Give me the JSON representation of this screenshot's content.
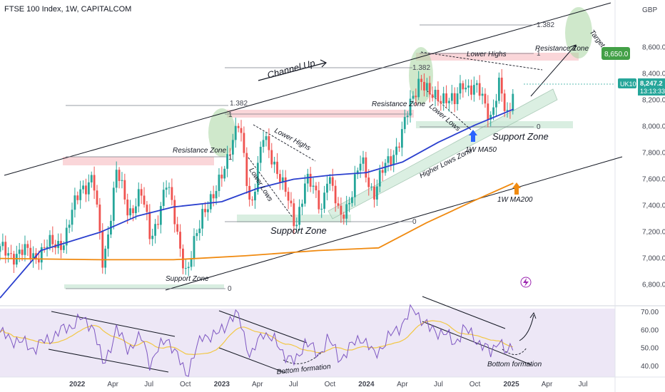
{
  "header": {
    "title": "FTSE 100 Index, 1W, CAPITALCOM"
  },
  "colors": {
    "bull": "#26a69a",
    "bear": "#ef5350",
    "ma50": "#2a3fce",
    "ma200": "#f08a10",
    "rsi": "#7e57c2",
    "rsi_ma": "#f2c744",
    "rsi_bg": "#ede7f6",
    "resistance": "#f8c8cc",
    "support": "#cfead9",
    "price_tag": "#26a69a",
    "target_tag": "#43a047"
  },
  "chart_data": {
    "type": "candlestick",
    "price_axis": {
      "unit": "GBP",
      "ticks": [
        "8,600.0",
        "8,400.0",
        "8,200.0",
        "8,000.0",
        "7,800.0",
        "7,600.0",
        "7,400.0",
        "7,200.0",
        "7,000.0",
        "6,800.0"
      ],
      "tick_values": [
        8600,
        8400,
        8200,
        8000,
        7800,
        7600,
        7400,
        7200,
        7000,
        6800
      ],
      "range": [
        6690,
        8850
      ]
    },
    "time_axis": {
      "labels": [
        "2022",
        "Apr",
        "Jul",
        "Oct",
        "2023",
        "Apr",
        "Jul",
        "Oct",
        "2024",
        "Apr",
        "Jul",
        "Oct",
        "2025",
        "Apr",
        "Jul"
      ],
      "label_dates": [
        "2022-01-01",
        "2022-04-01",
        "2022-07-01",
        "2022-10-01",
        "2023-01-01",
        "2023-04-01",
        "2023-07-01",
        "2023-10-01",
        "2024-01-01",
        "2024-04-01",
        "2024-07-01",
        "2024-10-01",
        "2025-01-01",
        "2025-04-01",
        "2025-07-01"
      ],
      "range": [
        "2021-06-20",
        "2025-09-20"
      ]
    },
    "anchors": [
      [
        "2021-06-20",
        7050
      ],
      [
        "2021-09-15",
        7030
      ],
      [
        "2021-12-01",
        7150
      ],
      [
        "2022-01-10",
        7550
      ],
      [
        "2022-02-10",
        7600
      ],
      [
        "2022-03-07",
        6950
      ],
      [
        "2022-04-10",
        7650
      ],
      [
        "2022-05-10",
        7350
      ],
      [
        "2022-06-10",
        7500
      ],
      [
        "2022-07-05",
        7150
      ],
      [
        "2022-08-15",
        7550
      ],
      [
        "2022-09-05",
        7300
      ],
      [
        "2022-10-05",
        6850
      ],
      [
        "2022-11-15",
        7400
      ],
      [
        "2022-12-15",
        7450
      ],
      [
        "2023-01-20",
        7850
      ],
      [
        "2023-02-14",
        8000
      ],
      [
        "2023-03-15",
        7400
      ],
      [
        "2023-04-15",
        7900
      ],
      [
        "2023-05-20",
        7700
      ],
      [
        "2023-07-05",
        7250
      ],
      [
        "2023-08-01",
        7600
      ],
      [
        "2023-09-10",
        7400
      ],
      [
        "2023-09-25",
        7650
      ],
      [
        "2023-10-25",
        7300
      ],
      [
        "2023-11-25",
        7500
      ],
      [
        "2023-12-20",
        7730
      ],
      [
        "2024-01-20",
        7500
      ],
      [
        "2024-02-20",
        7700
      ],
      [
        "2024-04-01",
        7950
      ],
      [
        "2024-05-15",
        8400
      ],
      [
        "2024-06-10",
        8200
      ],
      [
        "2024-07-15",
        8250
      ],
      [
        "2024-08-10",
        8150
      ],
      [
        "2024-09-01",
        8350
      ],
      [
        "2024-10-10",
        8250
      ],
      [
        "2024-11-10",
        8100
      ],
      [
        "2024-12-01",
        8300
      ],
      [
        "2024-12-20",
        8050
      ],
      [
        "2025-01-06",
        8247
      ]
    ],
    "moving_averages": [
      {
        "name": "1W MA50",
        "color": "#2a3fce",
        "points": [
          [
            "2021-06-20",
            6700
          ],
          [
            "2021-10-01",
            7060
          ],
          [
            "2022-03-01",
            7200
          ],
          [
            "2022-06-01",
            7320
          ],
          [
            "2022-09-01",
            7390
          ],
          [
            "2023-01-01",
            7430
          ],
          [
            "2023-04-01",
            7530
          ],
          [
            "2023-07-01",
            7600
          ],
          [
            "2023-10-01",
            7630
          ],
          [
            "2024-01-01",
            7650
          ],
          [
            "2024-04-01",
            7730
          ],
          [
            "2024-07-01",
            7880
          ],
          [
            "2024-10-01",
            8010
          ],
          [
            "2025-01-06",
            8130
          ]
        ]
      },
      {
        "name": "1W MA200",
        "color": "#f08a10",
        "points": [
          [
            "2021-06-20",
            7000
          ],
          [
            "2022-03-01",
            6990
          ],
          [
            "2022-09-01",
            6990
          ],
          [
            "2023-03-01",
            7020
          ],
          [
            "2023-09-01",
            7060
          ],
          [
            "2024-02-01",
            7080
          ],
          [
            "2024-06-01",
            7270
          ],
          [
            "2024-10-01",
            7440
          ],
          [
            "2025-01-06",
            7570
          ]
        ]
      }
    ],
    "last_price": {
      "symbol": "UK100",
      "value": "8,247.2",
      "countdown": "13:13:33"
    },
    "target": {
      "label": "Target",
      "value": "8,650.0"
    },
    "annotations": [
      "Channel Up",
      "Resistance Zone",
      "Resistance Zone",
      "Resistance Zone",
      "Support Zone",
      "Support Zone",
      "Support Zone",
      "Lower Highs",
      "Lower Lows",
      "Lower Highs",
      "Lower Lows",
      "Higher Lows Zone",
      "1W MA50",
      "1W MA200",
      "Bottom formation",
      "Bottom formation"
    ],
    "fib_labels": [
      "1.382",
      "1",
      "0",
      "1.382",
      "1",
      "0",
      "1.382",
      "1",
      "0"
    ],
    "rsi": {
      "ticks": [
        "70.00",
        "60.00",
        "50.00",
        "40.00"
      ],
      "tick_values": [
        70,
        60,
        50,
        40
      ],
      "range": [
        34,
        72
      ],
      "band": [
        30,
        70
      ],
      "anchors": [
        [
          "2021-06-20",
          58
        ],
        [
          "2021-09-15",
          50
        ],
        [
          "2021-11-10",
          58
        ],
        [
          "2022-01-10",
          66
        ],
        [
          "2022-02-10",
          63
        ],
        [
          "2022-03-07",
          40
        ],
        [
          "2022-04-10",
          60
        ],
        [
          "2022-05-10",
          50
        ],
        [
          "2022-06-15",
          56
        ],
        [
          "2022-07-05",
          41
        ],
        [
          "2022-08-15",
          57
        ],
        [
          "2022-09-05",
          47
        ],
        [
          "2022-10-05",
          36
        ],
        [
          "2022-11-15",
          58
        ],
        [
          "2022-12-15",
          56
        ],
        [
          "2023-01-20",
          66
        ],
        [
          "2023-02-14",
          68
        ],
        [
          "2023-03-15",
          44
        ],
        [
          "2023-04-15",
          60
        ],
        [
          "2023-05-20",
          52
        ],
        [
          "2023-07-05",
          41
        ],
        [
          "2023-08-01",
          55
        ],
        [
          "2023-09-01",
          45
        ],
        [
          "2023-09-25",
          56
        ],
        [
          "2023-10-25",
          44
        ],
        [
          "2023-11-25",
          51
        ],
        [
          "2023-12-20",
          57
        ],
        [
          "2024-01-20",
          46
        ],
        [
          "2024-02-20",
          54
        ],
        [
          "2024-04-01",
          64
        ],
        [
          "2024-05-01",
          72
        ],
        [
          "2024-06-10",
          60
        ],
        [
          "2024-07-15",
          59
        ],
        [
          "2024-08-10",
          52
        ],
        [
          "2024-09-01",
          61
        ],
        [
          "2024-10-10",
          54
        ],
        [
          "2024-11-10",
          47
        ],
        [
          "2024-12-01",
          56
        ],
        [
          "2024-12-20",
          45
        ],
        [
          "2025-01-06",
          53
        ]
      ]
    }
  }
}
